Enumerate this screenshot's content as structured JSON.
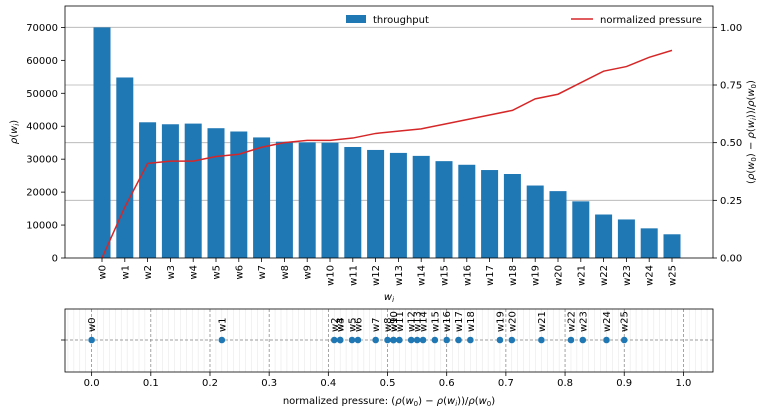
{
  "chart_data": [
    {
      "type": "bar",
      "categories": [
        "w0",
        "w1",
        "w2",
        "w3",
        "w4",
        "w5",
        "w6",
        "w7",
        "w8",
        "w9",
        "w10",
        "w11",
        "w12",
        "w13",
        "w14",
        "w15",
        "w16",
        "w17",
        "w18",
        "w19",
        "w20",
        "w21",
        "w22",
        "w23",
        "w24",
        "w25"
      ],
      "series": [
        {
          "name": "throughput",
          "type": "bar",
          "axis": "left",
          "color": "#1f77b4",
          "values": [
            70000,
            54800,
            41200,
            40600,
            40800,
            39400,
            38400,
            36600,
            35300,
            35100,
            35000,
            33700,
            32800,
            31900,
            31000,
            29400,
            28300,
            26700,
            25500,
            22000,
            20300,
            17200,
            13200,
            11700,
            9000,
            7200
          ]
        },
        {
          "name": "normalized pressure",
          "type": "line",
          "axis": "right",
          "color": "#d62728",
          "values": [
            0.0,
            0.22,
            0.41,
            0.42,
            0.42,
            0.44,
            0.45,
            0.48,
            0.5,
            0.51,
            0.51,
            0.52,
            0.54,
            0.55,
            0.56,
            0.58,
            0.6,
            0.62,
            0.64,
            0.69,
            0.71,
            0.76,
            0.81,
            0.83,
            0.87,
            0.9
          ]
        }
      ],
      "xlabel": "w_i",
      "ylabel": "ρ(w_i)",
      "y2label": "(ρ(w₀) − ρ(wᵢ))/ρ(w₀)",
      "ylim": [
        0,
        76500
      ],
      "yticks": [
        0,
        10000,
        20000,
        30000,
        40000,
        50000,
        60000,
        70000
      ],
      "y2lim": [
        0,
        1.0925
      ],
      "y2ticks": [
        0.0,
        0.25,
        0.5,
        0.75,
        1.0
      ],
      "y2tick_labels": [
        "0.00",
        "0.25",
        "0.50",
        "0.75",
        "1.00"
      ],
      "grid": "horizontal (right axis)",
      "legend": [
        "top-center",
        "top-right"
      ]
    },
    {
      "type": "scatter",
      "color": "#1f77b4",
      "points": [
        {
          "label": "w0",
          "x": 0.0
        },
        {
          "label": "w1",
          "x": 0.22
        },
        {
          "label": "w2",
          "x": 0.41
        },
        {
          "label": "w3",
          "x": 0.42
        },
        {
          "label": "w4",
          "x": 0.42
        },
        {
          "label": "w5",
          "x": 0.44
        },
        {
          "label": "w6",
          "x": 0.45
        },
        {
          "label": "w7",
          "x": 0.48
        },
        {
          "label": "w8",
          "x": 0.5
        },
        {
          "label": "w9",
          "x": 0.51
        },
        {
          "label": "w10",
          "x": 0.51
        },
        {
          "label": "w11",
          "x": 0.52
        },
        {
          "label": "w12",
          "x": 0.54
        },
        {
          "label": "w13",
          "x": 0.55
        },
        {
          "label": "w14",
          "x": 0.56
        },
        {
          "label": "w15",
          "x": 0.58
        },
        {
          "label": "w16",
          "x": 0.6
        },
        {
          "label": "w17",
          "x": 0.62
        },
        {
          "label": "w18",
          "x": 0.64
        },
        {
          "label": "w19",
          "x": 0.69
        },
        {
          "label": "w20",
          "x": 0.71
        },
        {
          "label": "w21",
          "x": 0.76
        },
        {
          "label": "w22",
          "x": 0.81
        },
        {
          "label": "w23",
          "x": 0.83
        },
        {
          "label": "w24",
          "x": 0.87
        },
        {
          "label": "w25",
          "x": 0.9
        }
      ],
      "xlabel": "normalized pressure: (ρ(w₀) − ρ(wᵢ))/ρ(w₀)",
      "xlim": [
        -0.045,
        1.05
      ],
      "xticks": [
        0.0,
        0.1,
        0.2,
        0.3,
        0.4,
        0.5,
        0.6,
        0.7,
        0.8,
        0.9,
        1.0
      ],
      "xtick_labels": [
        "0.0",
        "0.1",
        "0.2",
        "0.3",
        "0.4",
        "0.5",
        "0.6",
        "0.7",
        "0.8",
        "0.9",
        "1.0"
      ],
      "grid": "dashed vertical + dashed center line"
    }
  ]
}
